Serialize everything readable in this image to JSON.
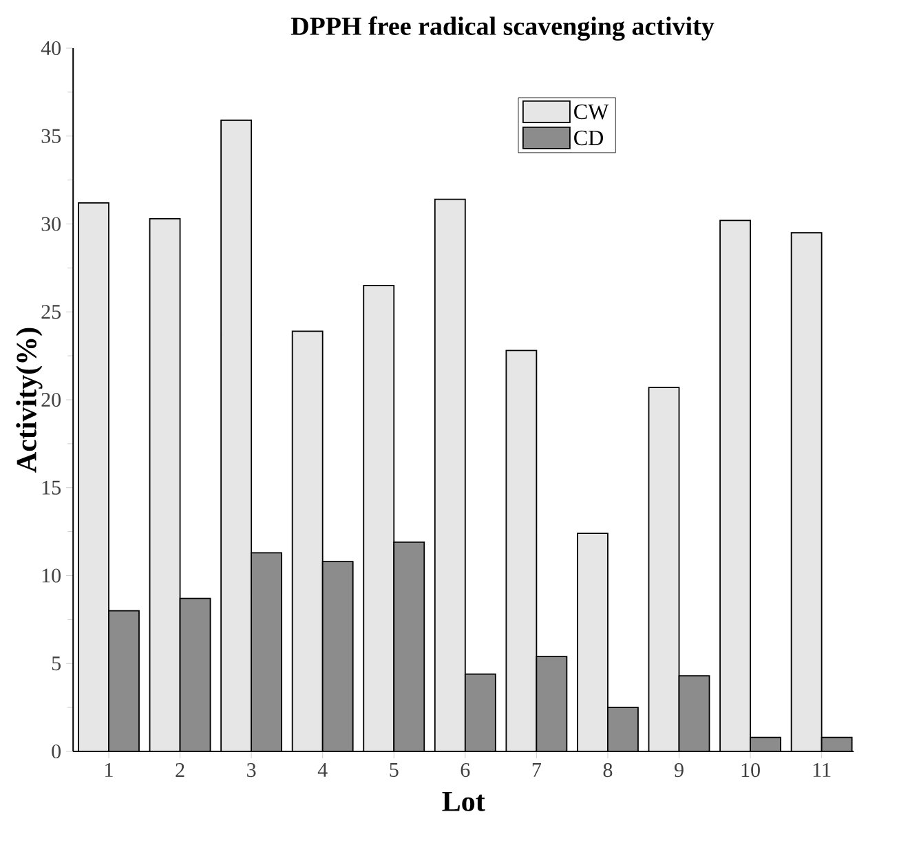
{
  "chart_data": {
    "type": "bar",
    "title": "DPPH free radical scavenging activity",
    "xlabel": "Lot",
    "ylabel": "Activity(%)",
    "categories": [
      "1",
      "2",
      "3",
      "4",
      "5",
      "6",
      "7",
      "8",
      "9",
      "10",
      "11"
    ],
    "series": [
      {
        "name": "CW",
        "color": "#e6e6e6",
        "values": [
          31.2,
          30.3,
          35.9,
          23.9,
          26.5,
          31.4,
          22.8,
          12.4,
          20.7,
          30.2,
          29.5
        ]
      },
      {
        "name": "CD",
        "color": "#8c8c8c",
        "values": [
          8.0,
          8.7,
          11.3,
          10.8,
          11.9,
          4.4,
          5.4,
          2.5,
          4.3,
          0.8,
          0.8
        ]
      }
    ],
    "ylim": [
      0,
      40
    ],
    "yticks": [
      0,
      5,
      10,
      15,
      20,
      25,
      30,
      35,
      40
    ],
    "grid": false,
    "legend": "top right"
  }
}
